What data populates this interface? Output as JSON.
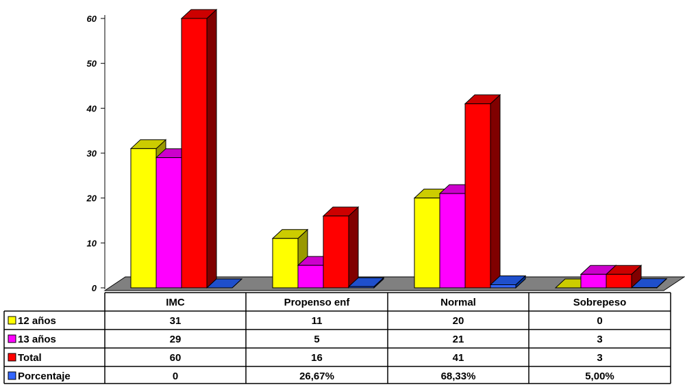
{
  "chart_data": {
    "type": "bar",
    "categories": [
      "IMC",
      "Propenso enf",
      "Normal",
      "Sobrepeso"
    ],
    "series": [
      {
        "name": "12 años",
        "values": [
          31,
          11,
          20,
          0
        ],
        "color": "#FFFF00",
        "side_color": "#999900",
        "top_color": "#CCCC00",
        "labels": [
          "31",
          "11",
          "20",
          "0"
        ]
      },
      {
        "name": "13 años",
        "values": [
          29,
          5,
          21,
          3
        ],
        "color": "#FF00FF",
        "side_color": "#990099",
        "top_color": "#CC00CC",
        "labels": [
          "29",
          "5",
          "21",
          "3"
        ]
      },
      {
        "name": "Total",
        "values": [
          60,
          16,
          41,
          3
        ],
        "color": "#FF0000",
        "side_color": "#800000",
        "top_color": "#CC0000",
        "labels": [
          "60",
          "16",
          "41",
          "3"
        ]
      },
      {
        "name": "Porcentaje",
        "values": [
          0,
          0.2667,
          0.6833,
          0.05
        ],
        "color": "#3366FF",
        "side_color": "#003399",
        "top_color": "#1F4FCC",
        "labels": [
          "0",
          "26,67%",
          "68,33%",
          "5,00%"
        ]
      }
    ],
    "yticks": [
      "0",
      "10",
      "20",
      "30",
      "40",
      "50",
      "60"
    ],
    "ylim": [
      0,
      60
    ],
    "grid": false,
    "legend": "data table",
    "floor_color": "#808080"
  }
}
